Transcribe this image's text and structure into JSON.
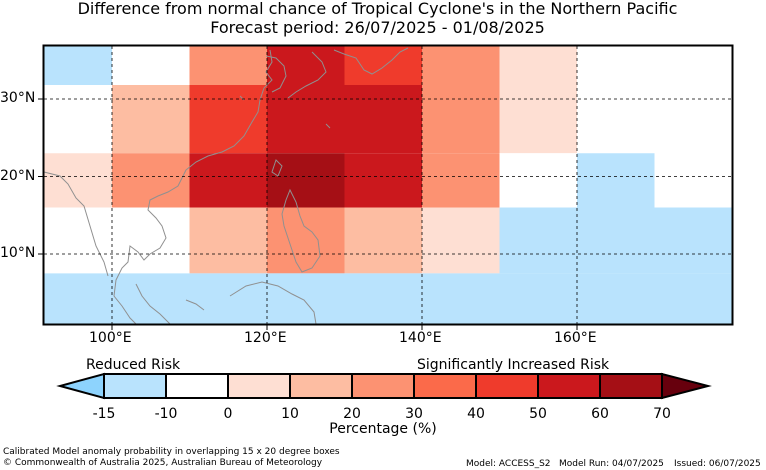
{
  "title": {
    "line1": "Difference from normal chance of Tropical Cyclone's in the Northern Pacific",
    "line2": "Forecast period: 26/07/2025 - 01/08/2025"
  },
  "axes": {
    "lon_labels": [
      "100°E",
      "120°E",
      "140°E",
      "160°E"
    ],
    "lat_labels": [
      "30°N",
      "20°N",
      "10°N"
    ]
  },
  "grid_cells": [
    {
      "lon": 95,
      "lat": 34,
      "category": "-15"
    },
    {
      "lon": 105,
      "lat": 34,
      "category": "-10"
    },
    {
      "lon": 115,
      "lat": 34,
      "category": "20"
    },
    {
      "lon": 125,
      "lat": 34,
      "category": "50"
    },
    {
      "lon": 135,
      "lat": 34,
      "category": "40"
    },
    {
      "lon": 145,
      "lat": 34,
      "category": "20"
    },
    {
      "lon": 155,
      "lat": 34,
      "category": "0"
    },
    {
      "lon": 165,
      "lat": 34,
      "category": "-10"
    },
    {
      "lon": 175,
      "lat": 34,
      "category": "-10"
    },
    {
      "lon": 95,
      "lat": 28,
      "category": "-10"
    },
    {
      "lon": 105,
      "lat": 28,
      "category": "10"
    },
    {
      "lon": 115,
      "lat": 28,
      "category": "40"
    },
    {
      "lon": 125,
      "lat": 28,
      "category": "50"
    },
    {
      "lon": 135,
      "lat": 28,
      "category": "50"
    },
    {
      "lon": 145,
      "lat": 28,
      "category": "20"
    },
    {
      "lon": 155,
      "lat": 28,
      "category": "0"
    },
    {
      "lon": 165,
      "lat": 28,
      "category": "-10"
    },
    {
      "lon": 175,
      "lat": 28,
      "category": "-10"
    },
    {
      "lon": 95,
      "lat": 20,
      "category": "0"
    },
    {
      "lon": 105,
      "lat": 20,
      "category": "20"
    },
    {
      "lon": 115,
      "lat": 20,
      "category": "50"
    },
    {
      "lon": 125,
      "lat": 20,
      "category": "60"
    },
    {
      "lon": 135,
      "lat": 20,
      "category": "50"
    },
    {
      "lon": 145,
      "lat": 20,
      "category": "20"
    },
    {
      "lon": 155,
      "lat": 20,
      "category": "-10"
    },
    {
      "lon": 165,
      "lat": 20,
      "category": "-15"
    },
    {
      "lon": 175,
      "lat": 20,
      "category": "-10"
    },
    {
      "lon": 95,
      "lat": 12,
      "category": "-10"
    },
    {
      "lon": 105,
      "lat": 12,
      "category": "-10"
    },
    {
      "lon": 115,
      "lat": 12,
      "category": "10"
    },
    {
      "lon": 125,
      "lat": 12,
      "category": "20"
    },
    {
      "lon": 135,
      "lat": 12,
      "category": "10"
    },
    {
      "lon": 145,
      "lat": 12,
      "category": "0"
    },
    {
      "lon": 155,
      "lat": 12,
      "category": "-15"
    },
    {
      "lon": 165,
      "lat": 12,
      "category": "-15"
    },
    {
      "lon": 175,
      "lat": 12,
      "category": "-15"
    },
    {
      "lon": 95,
      "lat": 4,
      "category": "-15"
    },
    {
      "lon": 105,
      "lat": 4,
      "category": "-15"
    },
    {
      "lon": 115,
      "lat": 4,
      "category": "-15"
    },
    {
      "lon": 125,
      "lat": 4,
      "category": "-15"
    },
    {
      "lon": 135,
      "lat": 4,
      "category": "-15"
    },
    {
      "lon": 145,
      "lat": 4,
      "category": "-15"
    },
    {
      "lon": 155,
      "lat": 4,
      "category": "-15"
    },
    {
      "lon": 165,
      "lat": 4,
      "category": "-15"
    },
    {
      "lon": 175,
      "lat": 4,
      "category": "-15"
    }
  ],
  "colorbar": {
    "left_label": "Reduced Risk",
    "right_label": "Significantly Increased Risk",
    "ticks": [
      "-15",
      "-10",
      "0",
      "10",
      "20",
      "30",
      "40",
      "50",
      "60",
      "70"
    ],
    "xlabel": "Percentage (%)",
    "colors": {
      "below": "#8dd3fd",
      "-15": "#b9e3fd",
      "-10": "#ffffff",
      "0": "#fedfd3",
      "10": "#fdbda2",
      "20": "#fc9272",
      "30": "#fb6a4a",
      "40": "#ef3b2c",
      "50": "#cb181d",
      "60": "#a50f15",
      "above": "#67000d"
    }
  },
  "footer": {
    "note": "Calibrated Model anomaly probability in overlapping 15 x 20 degree boxes",
    "copyright": "© Commonwealth of Australia 2025, Australian Bureau of Meteorology",
    "model": "Model: ACCESS_S2",
    "model_run": "Model Run: 04/07/2025",
    "issued": "Issued: 06/07/2025"
  }
}
